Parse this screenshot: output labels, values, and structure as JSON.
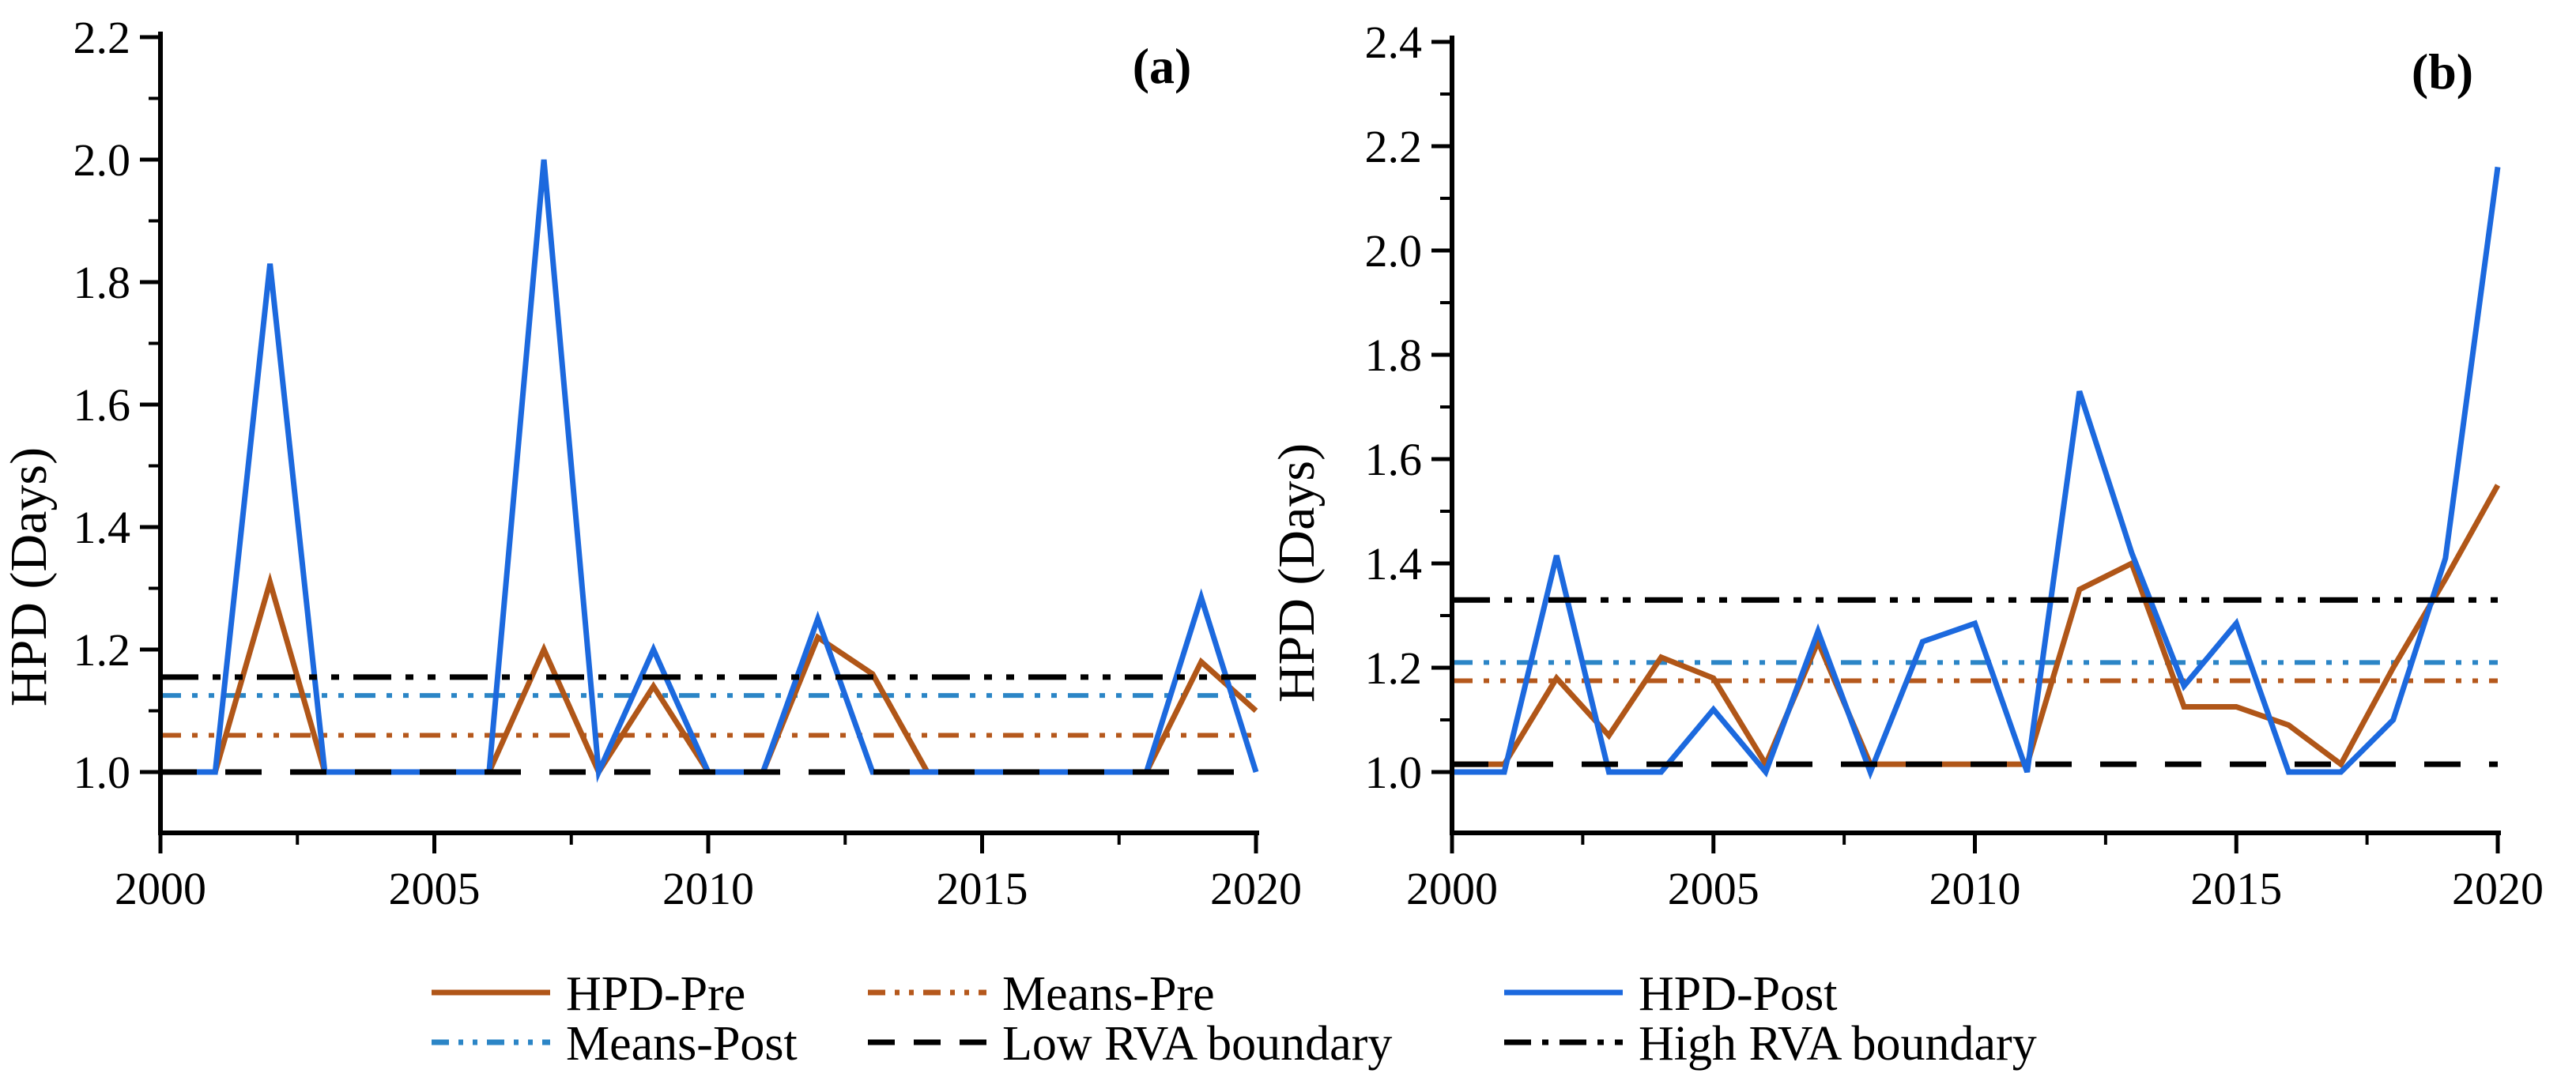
{
  "figure": {
    "panel_a_letter": "(a)",
    "panel_b_letter": "(b)",
    "y_axis_title_a": "HPD (Days)",
    "y_axis_title_b": "HPD (Days)"
  },
  "colors": {
    "hpd_pre": "#b05618",
    "hpd_post": "#1c69de",
    "means_pre": "#b5581c",
    "means_post": "#2b85c6",
    "boundary": "#000000"
  },
  "legend": {
    "rows": [
      [
        {
          "label": "HPD-Pre",
          "swatch": "solid",
          "color_key": "hpd_pre"
        },
        {
          "label": "Means-Pre",
          "swatch": "dash-dot-dot",
          "color_key": "means_pre"
        },
        {
          "label": "HPD-Post",
          "swatch": "solid",
          "color_key": "hpd_post"
        }
      ],
      [
        {
          "label": "Means-Post",
          "swatch": "dash-dot-dot",
          "color_key": "means_post"
        },
        {
          "label": "Low RVA boundary",
          "swatch": "long-dash",
          "color_key": "boundary"
        },
        {
          "label": "High RVA boundary",
          "swatch": "dash-dot",
          "color_key": "boundary"
        }
      ]
    ]
  },
  "chart_data": [
    {
      "type": "line",
      "panel": "(a)",
      "ylabel": "HPD (Days)",
      "xlabel": "",
      "grid": false,
      "x": [
        2000,
        2001,
        2002,
        2003,
        2004,
        2005,
        2006,
        2007,
        2008,
        2009,
        2010,
        2011,
        2012,
        2013,
        2014,
        2015,
        2016,
        2017,
        2018,
        2019,
        2020
      ],
      "series": [
        {
          "name": "HPD-Pre",
          "color_key": "hpd_pre",
          "values": [
            1.0,
            1.0,
            1.31,
            1.0,
            1.0,
            1.0,
            1.0,
            1.2,
            1.0,
            1.14,
            1.0,
            1.0,
            1.22,
            1.16,
            1.0,
            1.0,
            1.0,
            1.0,
            1.0,
            1.18,
            1.1
          ]
        },
        {
          "name": "HPD-Post",
          "color_key": "hpd_post",
          "values": [
            1.0,
            1.0,
            1.83,
            1.0,
            1.0,
            1.0,
            1.0,
            2.0,
            1.0,
            1.2,
            1.0,
            1.0,
            1.25,
            1.0,
            1.0,
            1.0,
            1.0,
            1.0,
            1.0,
            1.285,
            1.0
          ]
        }
      ],
      "hlines": [
        {
          "name": "Means-Pre",
          "value": 1.06,
          "style": "dash-dot-dot",
          "color_key": "means_pre"
        },
        {
          "name": "Means-Post",
          "value": 1.125,
          "style": "dash-dot-dot",
          "color_key": "means_post"
        },
        {
          "name": "Low RVA boundary",
          "value": 1.0,
          "style": "long-dash",
          "color_key": "boundary"
        },
        {
          "name": "High RVA boundary",
          "value": 1.155,
          "style": "dash-dot",
          "color_key": "boundary"
        }
      ],
      "ylim": [
        1.0,
        2.2
      ],
      "xlim": [
        2000,
        2020
      ],
      "yticklabels": [
        "1.0",
        "1.2",
        "1.4",
        "1.6",
        "1.8",
        "2.0",
        "2.2"
      ],
      "xticklabels": [
        "2000",
        "2005",
        "2010",
        "2015",
        "2020"
      ],
      "y_minor_step": 0.1,
      "x_minor_step": 2.5,
      "legend_position": "below-figure"
    },
    {
      "type": "line",
      "panel": "(b)",
      "ylabel": "HPD (Days)",
      "xlabel": "",
      "grid": false,
      "x": [
        2000,
        2001,
        2002,
        2003,
        2004,
        2005,
        2006,
        2007,
        2008,
        2009,
        2010,
        2011,
        2012,
        2013,
        2014,
        2015,
        2016,
        2017,
        2018,
        2019,
        2020
      ],
      "series": [
        {
          "name": "HPD-Pre",
          "color_key": "hpd_pre",
          "values": [
            1.015,
            1.015,
            1.18,
            1.07,
            1.22,
            1.18,
            1.015,
            1.25,
            1.015,
            1.015,
            1.015,
            1.015,
            1.35,
            1.4,
            1.125,
            1.125,
            1.09,
            1.015,
            1.2,
            1.37,
            1.55
          ]
        },
        {
          "name": "HPD-Post",
          "color_key": "hpd_post",
          "values": [
            1.0,
            1.0,
            1.415,
            1.0,
            1.0,
            1.12,
            1.0,
            1.27,
            1.0,
            1.25,
            1.285,
            1.0,
            1.73,
            1.42,
            1.165,
            1.285,
            1.0,
            1.0,
            1.1,
            1.41,
            2.16
          ]
        }
      ],
      "hlines": [
        {
          "name": "Means-Pre",
          "value": 1.175,
          "style": "dash-dot-dot",
          "color_key": "means_pre"
        },
        {
          "name": "Means-Post",
          "value": 1.21,
          "style": "dash-dot-dot",
          "color_key": "means_post"
        },
        {
          "name": "Low RVA boundary",
          "value": 1.015,
          "style": "long-dash",
          "color_key": "boundary"
        },
        {
          "name": "High RVA boundary",
          "value": 1.33,
          "style": "dash-dot",
          "color_key": "boundary"
        }
      ],
      "ylim": [
        1.0,
        2.4
      ],
      "xlim": [
        2000,
        2020
      ],
      "yticklabels": [
        "1.0",
        "1.2",
        "1.4",
        "1.6",
        "1.8",
        "2.0",
        "2.2",
        "2.4"
      ],
      "xticklabels": [
        "2000",
        "2005",
        "2010",
        "2015",
        "2020"
      ],
      "y_minor_step": 0.1,
      "x_minor_step": 2.5,
      "legend_position": "below-figure"
    }
  ]
}
